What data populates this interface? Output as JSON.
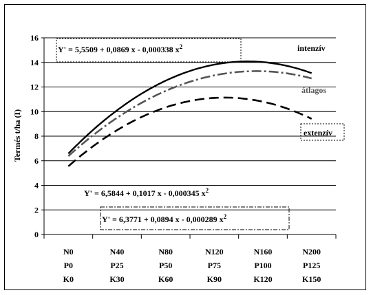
{
  "chart_data": {
    "type": "line",
    "ylabel": "Termés t/ha (I)",
    "ylim": [
      0,
      16
    ],
    "yticks": [
      0,
      2,
      4,
      6,
      8,
      10,
      12,
      14,
      16
    ],
    "categories": [
      [
        "N0",
        "P0",
        "K0"
      ],
      [
        "N40",
        "P25",
        "K30"
      ],
      [
        "N80",
        "P50",
        "K60"
      ],
      [
        "N120",
        "P75",
        "K90"
      ],
      [
        "N160",
        "P100",
        "K120"
      ],
      [
        "N200",
        "P125",
        "K150"
      ]
    ],
    "x": [
      0,
      40,
      80,
      120,
      160,
      200
    ],
    "series": [
      {
        "name": "intenzív",
        "style": "solid",
        "color": "#000000",
        "a": 6.5844,
        "b": 0.1017,
        "c": -0.000345,
        "values": [
          6.58,
          10.1,
          12.51,
          13.82,
          14.03,
          13.14
        ]
      },
      {
        "name": "átlagos",
        "style": "dashdot",
        "color": "#555555",
        "a": 6.3771,
        "b": 0.0894,
        "c": -0.000289,
        "values": [
          6.38,
          9.49,
          11.68,
          12.95,
          13.3,
          12.72
        ]
      },
      {
        "name": "extenzív",
        "style": "dashed",
        "color": "#000000",
        "a": 5.5509,
        "b": 0.0869,
        "c": -0.000338,
        "values": [
          5.55,
          8.48,
          10.35,
          11.11,
          10.82,
          9.4
        ]
      }
    ],
    "equations": {
      "extenziv": "Y' = 5,5509 + 0,0869 x - 0,000338 x",
      "intenziv": "Y' = 6,5844 + 0,1017 x - 0,000345 x",
      "atlagos": "Y' = 6,3771 + 0,0894 x - 0,000289 x",
      "power": "2"
    },
    "grid": "horizontal",
    "legend": "inline labels"
  }
}
